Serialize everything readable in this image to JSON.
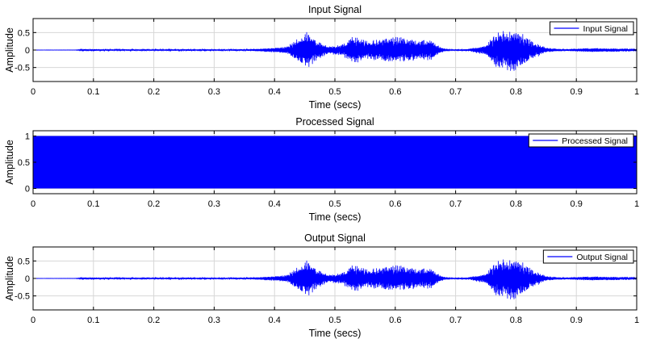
{
  "chart_data": [
    {
      "type": "line",
      "title": "Input Signal",
      "xlabel": "Time (secs)",
      "ylabel": "Amplitude",
      "xlim": [
        0,
        1
      ],
      "ylim": [
        -0.9,
        0.9
      ],
      "xticks": [
        "0",
        "0.1",
        "0.2",
        "0.3",
        "0.4",
        "0.5",
        "0.6",
        "0.7",
        "0.8",
        "0.9",
        "1"
      ],
      "yticks": [
        {
          "value": 0.5,
          "label": "0.5"
        },
        {
          "value": 0,
          "label": "0"
        },
        {
          "value": -0.5,
          "label": "-0.5"
        }
      ],
      "grid": true,
      "legend_position": "top-right",
      "series": [
        {
          "name": "Input Signal",
          "color": "#0000ff",
          "signal": "speech",
          "envelope": [
            {
              "t": 0,
              "a": 0.003
            },
            {
              "t": 0.07,
              "a": 0.004
            },
            {
              "t": 0.09,
              "a": 0.03
            },
            {
              "t": 0.12,
              "a": 0.02
            },
            {
              "t": 0.2,
              "a": 0.02
            },
            {
              "t": 0.26,
              "a": 0.025
            },
            {
              "t": 0.3,
              "a": 0.02
            },
            {
              "t": 0.36,
              "a": 0.025
            },
            {
              "t": 0.39,
              "a": 0.06
            },
            {
              "t": 0.42,
              "a": 0.1
            },
            {
              "t": 0.44,
              "a": 0.35
            },
            {
              "t": 0.455,
              "a": 0.55
            },
            {
              "t": 0.47,
              "a": 0.3
            },
            {
              "t": 0.49,
              "a": 0.12
            },
            {
              "t": 0.51,
              "a": 0.15
            },
            {
              "t": 0.53,
              "a": 0.4
            },
            {
              "t": 0.55,
              "a": 0.28
            },
            {
              "t": 0.57,
              "a": 0.3
            },
            {
              "t": 0.6,
              "a": 0.38
            },
            {
              "t": 0.63,
              "a": 0.33
            },
            {
              "t": 0.66,
              "a": 0.28
            },
            {
              "t": 0.675,
              "a": 0.08
            },
            {
              "t": 0.69,
              "a": 0.02
            },
            {
              "t": 0.72,
              "a": 0.03
            },
            {
              "t": 0.75,
              "a": 0.15
            },
            {
              "t": 0.77,
              "a": 0.55
            },
            {
              "t": 0.79,
              "a": 0.65
            },
            {
              "t": 0.81,
              "a": 0.5
            },
            {
              "t": 0.83,
              "a": 0.25
            },
            {
              "t": 0.85,
              "a": 0.07
            },
            {
              "t": 0.88,
              "a": 0.02
            },
            {
              "t": 0.9,
              "a": 0.04
            },
            {
              "t": 0.92,
              "a": 0.06
            },
            {
              "t": 0.96,
              "a": 0.05
            },
            {
              "t": 1.0,
              "a": 0.04
            }
          ]
        }
      ]
    },
    {
      "type": "line",
      "title": "Processed Signal",
      "xlabel": "Time (secs)",
      "ylabel": "Amplitude",
      "xlim": [
        0,
        1
      ],
      "ylim": [
        -0.1,
        1.1
      ],
      "xticks": [
        "0",
        "0.1",
        "0.2",
        "0.3",
        "0.4",
        "0.5",
        "0.6",
        "0.7",
        "0.8",
        "0.9",
        "1"
      ],
      "yticks": [
        {
          "value": 1,
          "label": "1"
        },
        {
          "value": 0.5,
          "label": "0.5"
        },
        {
          "value": 0,
          "label": "0"
        }
      ],
      "grid": true,
      "legend_position": "top-right",
      "series": [
        {
          "name": "Processed Signal",
          "color": "#0000ff",
          "signal": "square-wave",
          "min": 0,
          "max": 1
        }
      ]
    },
    {
      "type": "line",
      "title": "Output Signal",
      "xlabel": "Time (secs)",
      "ylabel": "Amplitude",
      "xlim": [
        0,
        1
      ],
      "ylim": [
        -0.9,
        0.9
      ],
      "xticks": [
        "0",
        "0.1",
        "0.2",
        "0.3",
        "0.4",
        "0.5",
        "0.6",
        "0.7",
        "0.8",
        "0.9",
        "1"
      ],
      "yticks": [
        {
          "value": 0.5,
          "label": "0.5"
        },
        {
          "value": 0,
          "label": "0"
        },
        {
          "value": -0.5,
          "label": "-0.5"
        }
      ],
      "grid": true,
      "legend_position": "top-right",
      "series": [
        {
          "name": "Output Signal",
          "color": "#0000ff",
          "signal": "speech",
          "envelope": [
            {
              "t": 0,
              "a": 0.003
            },
            {
              "t": 0.07,
              "a": 0.004
            },
            {
              "t": 0.09,
              "a": 0.03
            },
            {
              "t": 0.12,
              "a": 0.02
            },
            {
              "t": 0.2,
              "a": 0.02
            },
            {
              "t": 0.26,
              "a": 0.025
            },
            {
              "t": 0.3,
              "a": 0.02
            },
            {
              "t": 0.36,
              "a": 0.025
            },
            {
              "t": 0.39,
              "a": 0.06
            },
            {
              "t": 0.42,
              "a": 0.1
            },
            {
              "t": 0.44,
              "a": 0.35
            },
            {
              "t": 0.455,
              "a": 0.55
            },
            {
              "t": 0.47,
              "a": 0.3
            },
            {
              "t": 0.49,
              "a": 0.12
            },
            {
              "t": 0.51,
              "a": 0.15
            },
            {
              "t": 0.53,
              "a": 0.4
            },
            {
              "t": 0.55,
              "a": 0.28
            },
            {
              "t": 0.57,
              "a": 0.3
            },
            {
              "t": 0.6,
              "a": 0.38
            },
            {
              "t": 0.63,
              "a": 0.33
            },
            {
              "t": 0.66,
              "a": 0.28
            },
            {
              "t": 0.675,
              "a": 0.08
            },
            {
              "t": 0.69,
              "a": 0.02
            },
            {
              "t": 0.72,
              "a": 0.03
            },
            {
              "t": 0.75,
              "a": 0.15
            },
            {
              "t": 0.77,
              "a": 0.55
            },
            {
              "t": 0.79,
              "a": 0.65
            },
            {
              "t": 0.81,
              "a": 0.5
            },
            {
              "t": 0.83,
              "a": 0.25
            },
            {
              "t": 0.85,
              "a": 0.07
            },
            {
              "t": 0.88,
              "a": 0.02
            },
            {
              "t": 0.9,
              "a": 0.04
            },
            {
              "t": 0.92,
              "a": 0.06
            },
            {
              "t": 0.96,
              "a": 0.05
            },
            {
              "t": 1.0,
              "a": 0.04
            }
          ]
        }
      ]
    }
  ]
}
